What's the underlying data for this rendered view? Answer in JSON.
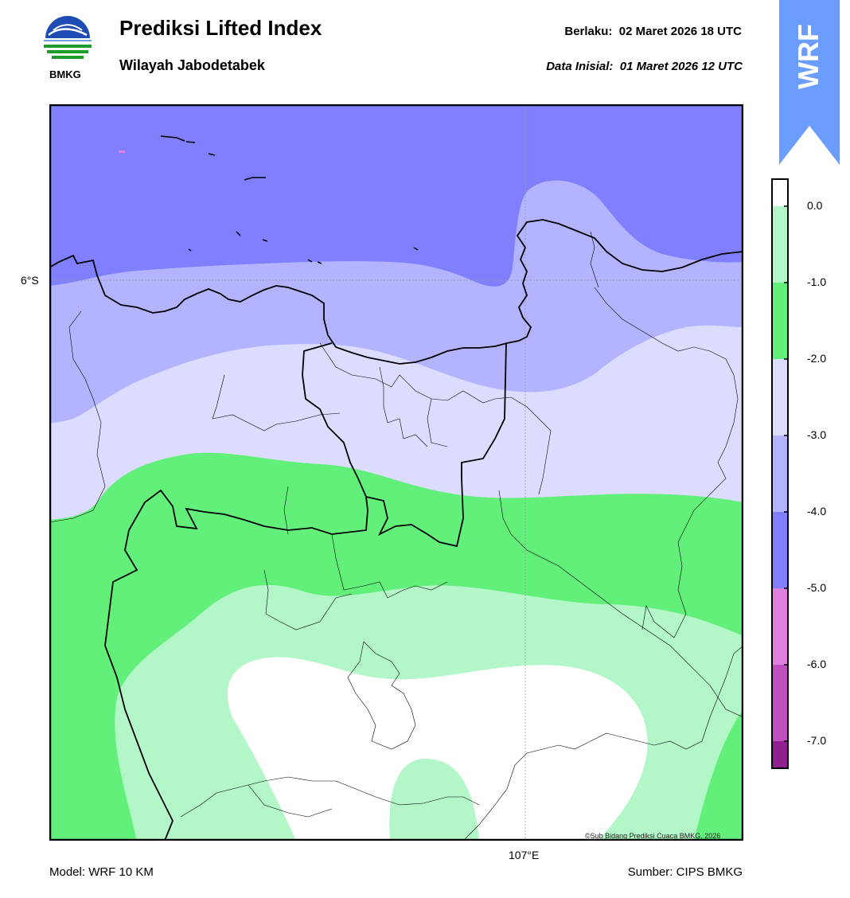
{
  "header": {
    "title": "Prediksi Lifted Index",
    "subtitle": "Wilayah Jabodetabek",
    "valid_label": "Berlaku:",
    "valid_value": "02 Maret 2026 18 UTC",
    "init_label": "Data Inisial:",
    "init_value": "01 Maret 2026 12 UTC"
  },
  "logo": {
    "text": "BMKG"
  },
  "badge": {
    "text": "WRF",
    "color": "#6b9dff"
  },
  "map": {
    "lat_label": "6°S",
    "lon_label": "107°E",
    "credit": "©Sub Bidang Prediksi Cuaca BMKG, 2026"
  },
  "colorbar": {
    "ticks": [
      "0.0",
      "-1.0",
      "-2.0",
      "-3.0",
      "-4.0",
      "-5.0",
      "-6.0",
      "-7.0"
    ],
    "colors": [
      "#ffffff",
      "#b3f7c8",
      "#62f07a",
      "#dcdcff",
      "#b3b3ff",
      "#8080ff",
      "#e080e0",
      "#c050c0",
      "#902090"
    ]
  },
  "footer": {
    "model": "Model: WRF 10 KM",
    "source": "Sumber: CIPS BMKG"
  }
}
